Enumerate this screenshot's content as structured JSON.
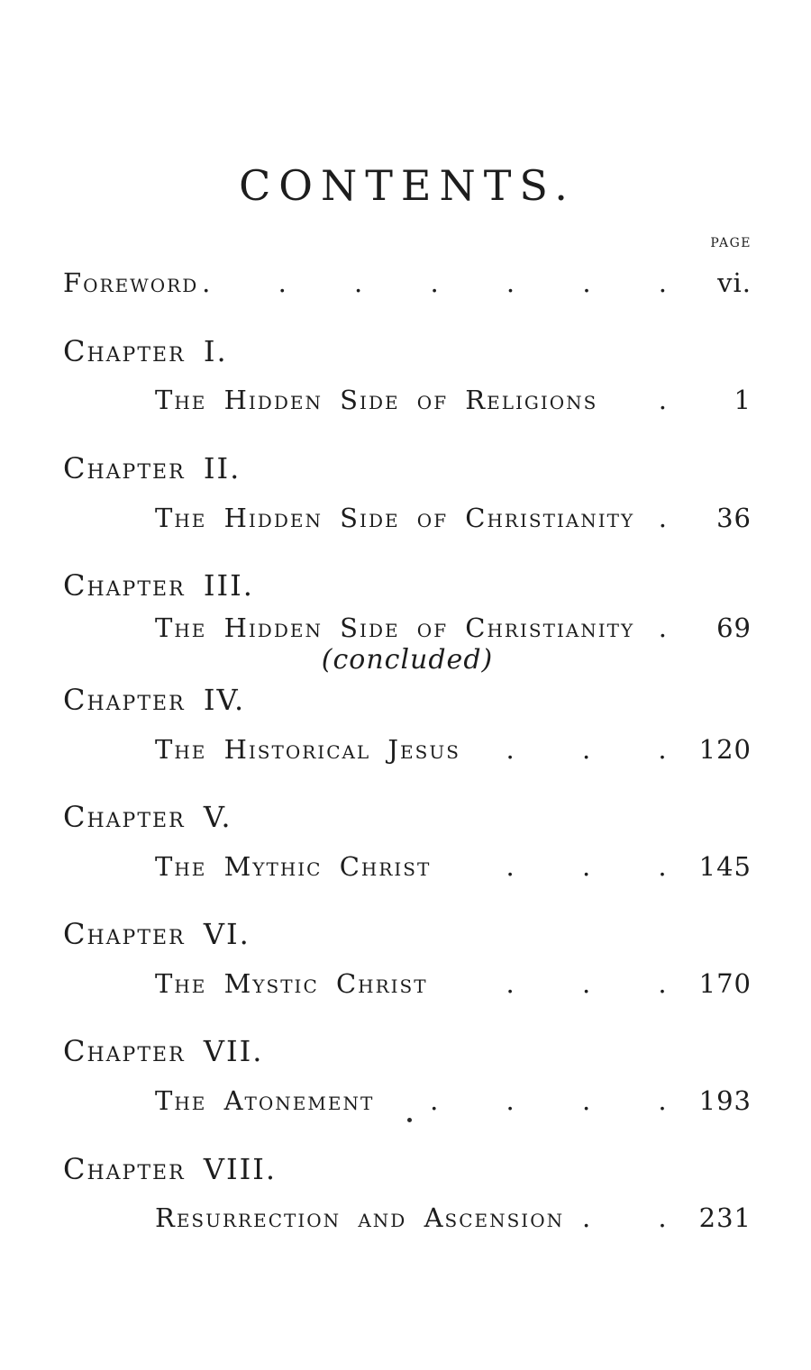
{
  "document": {
    "title": "CONTENTS.",
    "page_column_label": "PAGE",
    "foreword": {
      "label": "Foreword",
      "leader_dots": ". . . . . . .",
      "page": "vi."
    },
    "chapters": [
      {
        "heading": "Chapter I.",
        "entry": "The Hidden Side of Religions",
        "leader_dots": ".",
        "page": "1"
      },
      {
        "heading": "Chapter II.",
        "entry": "The Hidden Side of Christianity",
        "leader_dots": ".",
        "page": "36"
      },
      {
        "heading": "Chapter III.",
        "entry": "The Hidden Side of Christianity",
        "leader_dots": ".",
        "page": "69",
        "note": "(concluded)"
      },
      {
        "heading": "Chapter IV.",
        "entry": "The Historical Jesus",
        "leader_dots": ". . .",
        "page": "120"
      },
      {
        "heading": "Chapter V.",
        "entry": "The Mythic Christ",
        "leader_dots": ". . .",
        "page": "145"
      },
      {
        "heading": "Chapter VI.",
        "entry": "The Mystic Christ",
        "leader_dots": ". . .",
        "page": "170"
      },
      {
        "heading": "Chapter VII.",
        "entry": "The Atonement",
        "leader_dots": ". . . .",
        "page": "193"
      },
      {
        "heading": "Chapter VIII.",
        "entry": "Resurrection and Ascension",
        "leader_dots": ". .",
        "page": "231"
      }
    ]
  }
}
